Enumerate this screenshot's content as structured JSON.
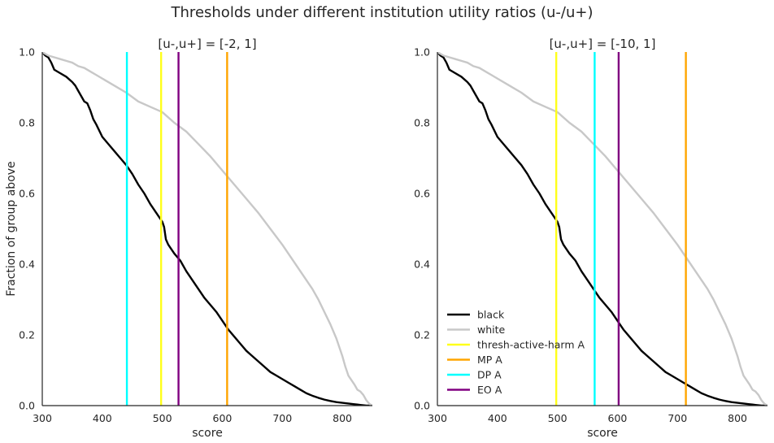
{
  "figure": {
    "title": "Thresholds under different institution utility ratios (u-/u+)"
  },
  "colors": {
    "black": "#000000",
    "white": "#c8c8c8",
    "thresh-active-harm A": "#ffff1a",
    "MP A": "#ffa500",
    "DP A": "#00ffff",
    "EO A": "#800080",
    "axes": "#262626"
  },
  "chart_data": [
    {
      "type": "line",
      "title": "[u-,u+] = [-2, 1]",
      "xlabel": "score",
      "ylabel": "Fraction of group above",
      "xlim": [
        300,
        850
      ],
      "ylim": [
        0,
        1.0
      ],
      "xticks": [
        "300",
        "400",
        "500",
        "600",
        "700",
        "800"
      ],
      "yticks": [
        "0.0",
        "0.2",
        "0.4",
        "0.6",
        "0.8",
        "1.0"
      ],
      "grid": false,
      "series": [
        {
          "name": "black",
          "x": [
            300,
            305,
            310,
            315,
            320,
            330,
            340,
            350,
            355,
            360,
            365,
            370,
            375,
            380,
            385,
            390,
            400,
            410,
            420,
            430,
            440,
            450,
            460,
            470,
            480,
            490,
            500,
            503,
            506,
            510,
            520,
            530,
            540,
            550,
            560,
            570,
            580,
            590,
            600,
            610,
            620,
            630,
            640,
            650,
            660,
            670,
            680,
            690,
            700,
            710,
            720,
            730,
            740,
            750,
            760,
            770,
            780,
            790,
            800,
            810,
            820,
            825,
            830,
            835,
            840,
            845,
            850
          ],
          "y": [
            1.0,
            0.99,
            0.985,
            0.97,
            0.95,
            0.94,
            0.93,
            0.915,
            0.905,
            0.89,
            0.875,
            0.86,
            0.855,
            0.835,
            0.81,
            0.795,
            0.76,
            0.74,
            0.72,
            0.7,
            0.68,
            0.655,
            0.625,
            0.6,
            0.57,
            0.545,
            0.52,
            0.505,
            0.47,
            0.455,
            0.43,
            0.41,
            0.38,
            0.355,
            0.33,
            0.305,
            0.285,
            0.265,
            0.24,
            0.215,
            0.195,
            0.175,
            0.155,
            0.14,
            0.125,
            0.11,
            0.095,
            0.085,
            0.075,
            0.065,
            0.055,
            0.045,
            0.035,
            0.028,
            0.022,
            0.017,
            0.013,
            0.01,
            0.008,
            0.006,
            0.004,
            0.003,
            0.002,
            0.001,
            0.0,
            0.0,
            0.0
          ]
        },
        {
          "name": "white",
          "x": [
            300,
            305,
            310,
            320,
            330,
            340,
            350,
            360,
            370,
            380,
            390,
            400,
            420,
            440,
            460,
            480,
            500,
            520,
            540,
            560,
            580,
            600,
            620,
            640,
            660,
            680,
            700,
            720,
            740,
            750,
            760,
            770,
            780,
            790,
            800,
            805,
            810,
            820,
            825,
            830,
            835,
            840,
            845,
            850
          ],
          "y": [
            1.0,
            0.995,
            0.99,
            0.985,
            0.98,
            0.975,
            0.97,
            0.96,
            0.955,
            0.945,
            0.935,
            0.925,
            0.905,
            0.885,
            0.86,
            0.845,
            0.83,
            0.8,
            0.775,
            0.74,
            0.705,
            0.665,
            0.625,
            0.585,
            0.545,
            0.5,
            0.455,
            0.405,
            0.355,
            0.33,
            0.3,
            0.265,
            0.23,
            0.19,
            0.14,
            0.11,
            0.085,
            0.06,
            0.045,
            0.04,
            0.03,
            0.015,
            0.005,
            0.0
          ]
        }
      ],
      "thresholds": [
        {
          "name": "thresh-active-harm A",
          "x": 498
        },
        {
          "name": "MP A",
          "x": 608
        },
        {
          "name": "DP A",
          "x": 441
        },
        {
          "name": "EO A",
          "x": 527
        }
      ]
    },
    {
      "type": "line",
      "title": "[u-,u+] = [-10, 1]",
      "xlabel": "score",
      "ylabel": "",
      "xlim": [
        300,
        850
      ],
      "ylim": [
        0,
        1.0
      ],
      "xticks": [
        "300",
        "400",
        "500",
        "600",
        "700",
        "800"
      ],
      "yticks": [
        "0.0",
        "0.2",
        "0.4",
        "0.6",
        "0.8",
        "1.0"
      ],
      "grid": false,
      "legend": {
        "position": "lower-left",
        "entries": [
          "black",
          "white",
          "thresh-active-harm A",
          "MP A",
          "DP A",
          "EO A"
        ]
      },
      "series": [
        {
          "name": "black",
          "x": [
            300,
            305,
            310,
            315,
            320,
            330,
            340,
            350,
            355,
            360,
            365,
            370,
            375,
            380,
            385,
            390,
            400,
            410,
            420,
            430,
            440,
            450,
            460,
            470,
            480,
            490,
            500,
            503,
            506,
            510,
            520,
            530,
            540,
            550,
            560,
            570,
            580,
            590,
            600,
            610,
            620,
            630,
            640,
            650,
            660,
            670,
            680,
            690,
            700,
            710,
            720,
            730,
            740,
            750,
            760,
            770,
            780,
            790,
            800,
            810,
            820,
            825,
            830,
            835,
            840,
            845,
            850
          ],
          "y": [
            1.0,
            0.99,
            0.985,
            0.97,
            0.95,
            0.94,
            0.93,
            0.915,
            0.905,
            0.89,
            0.875,
            0.86,
            0.855,
            0.835,
            0.81,
            0.795,
            0.76,
            0.74,
            0.72,
            0.7,
            0.68,
            0.655,
            0.625,
            0.6,
            0.57,
            0.545,
            0.52,
            0.505,
            0.47,
            0.455,
            0.43,
            0.41,
            0.38,
            0.355,
            0.33,
            0.305,
            0.285,
            0.265,
            0.24,
            0.215,
            0.195,
            0.175,
            0.155,
            0.14,
            0.125,
            0.11,
            0.095,
            0.085,
            0.075,
            0.065,
            0.055,
            0.045,
            0.035,
            0.028,
            0.022,
            0.017,
            0.013,
            0.01,
            0.008,
            0.006,
            0.004,
            0.003,
            0.002,
            0.001,
            0.0,
            0.0,
            0.0
          ]
        },
        {
          "name": "white",
          "x": [
            300,
            305,
            310,
            320,
            330,
            340,
            350,
            360,
            370,
            380,
            390,
            400,
            420,
            440,
            460,
            480,
            500,
            520,
            540,
            560,
            580,
            600,
            620,
            640,
            660,
            680,
            700,
            720,
            740,
            750,
            760,
            770,
            780,
            790,
            800,
            805,
            810,
            820,
            825,
            830,
            835,
            840,
            845,
            850
          ],
          "y": [
            1.0,
            0.995,
            0.99,
            0.985,
            0.98,
            0.975,
            0.97,
            0.96,
            0.955,
            0.945,
            0.935,
            0.925,
            0.905,
            0.885,
            0.86,
            0.845,
            0.83,
            0.8,
            0.775,
            0.74,
            0.705,
            0.665,
            0.625,
            0.585,
            0.545,
            0.5,
            0.455,
            0.405,
            0.355,
            0.33,
            0.3,
            0.265,
            0.23,
            0.19,
            0.14,
            0.11,
            0.085,
            0.06,
            0.045,
            0.04,
            0.03,
            0.015,
            0.005,
            0.0
          ]
        }
      ],
      "thresholds": [
        {
          "name": "thresh-active-harm A",
          "x": 498
        },
        {
          "name": "MP A",
          "x": 714
        },
        {
          "name": "DP A",
          "x": 562
        },
        {
          "name": "EO A",
          "x": 602
        }
      ]
    }
  ]
}
